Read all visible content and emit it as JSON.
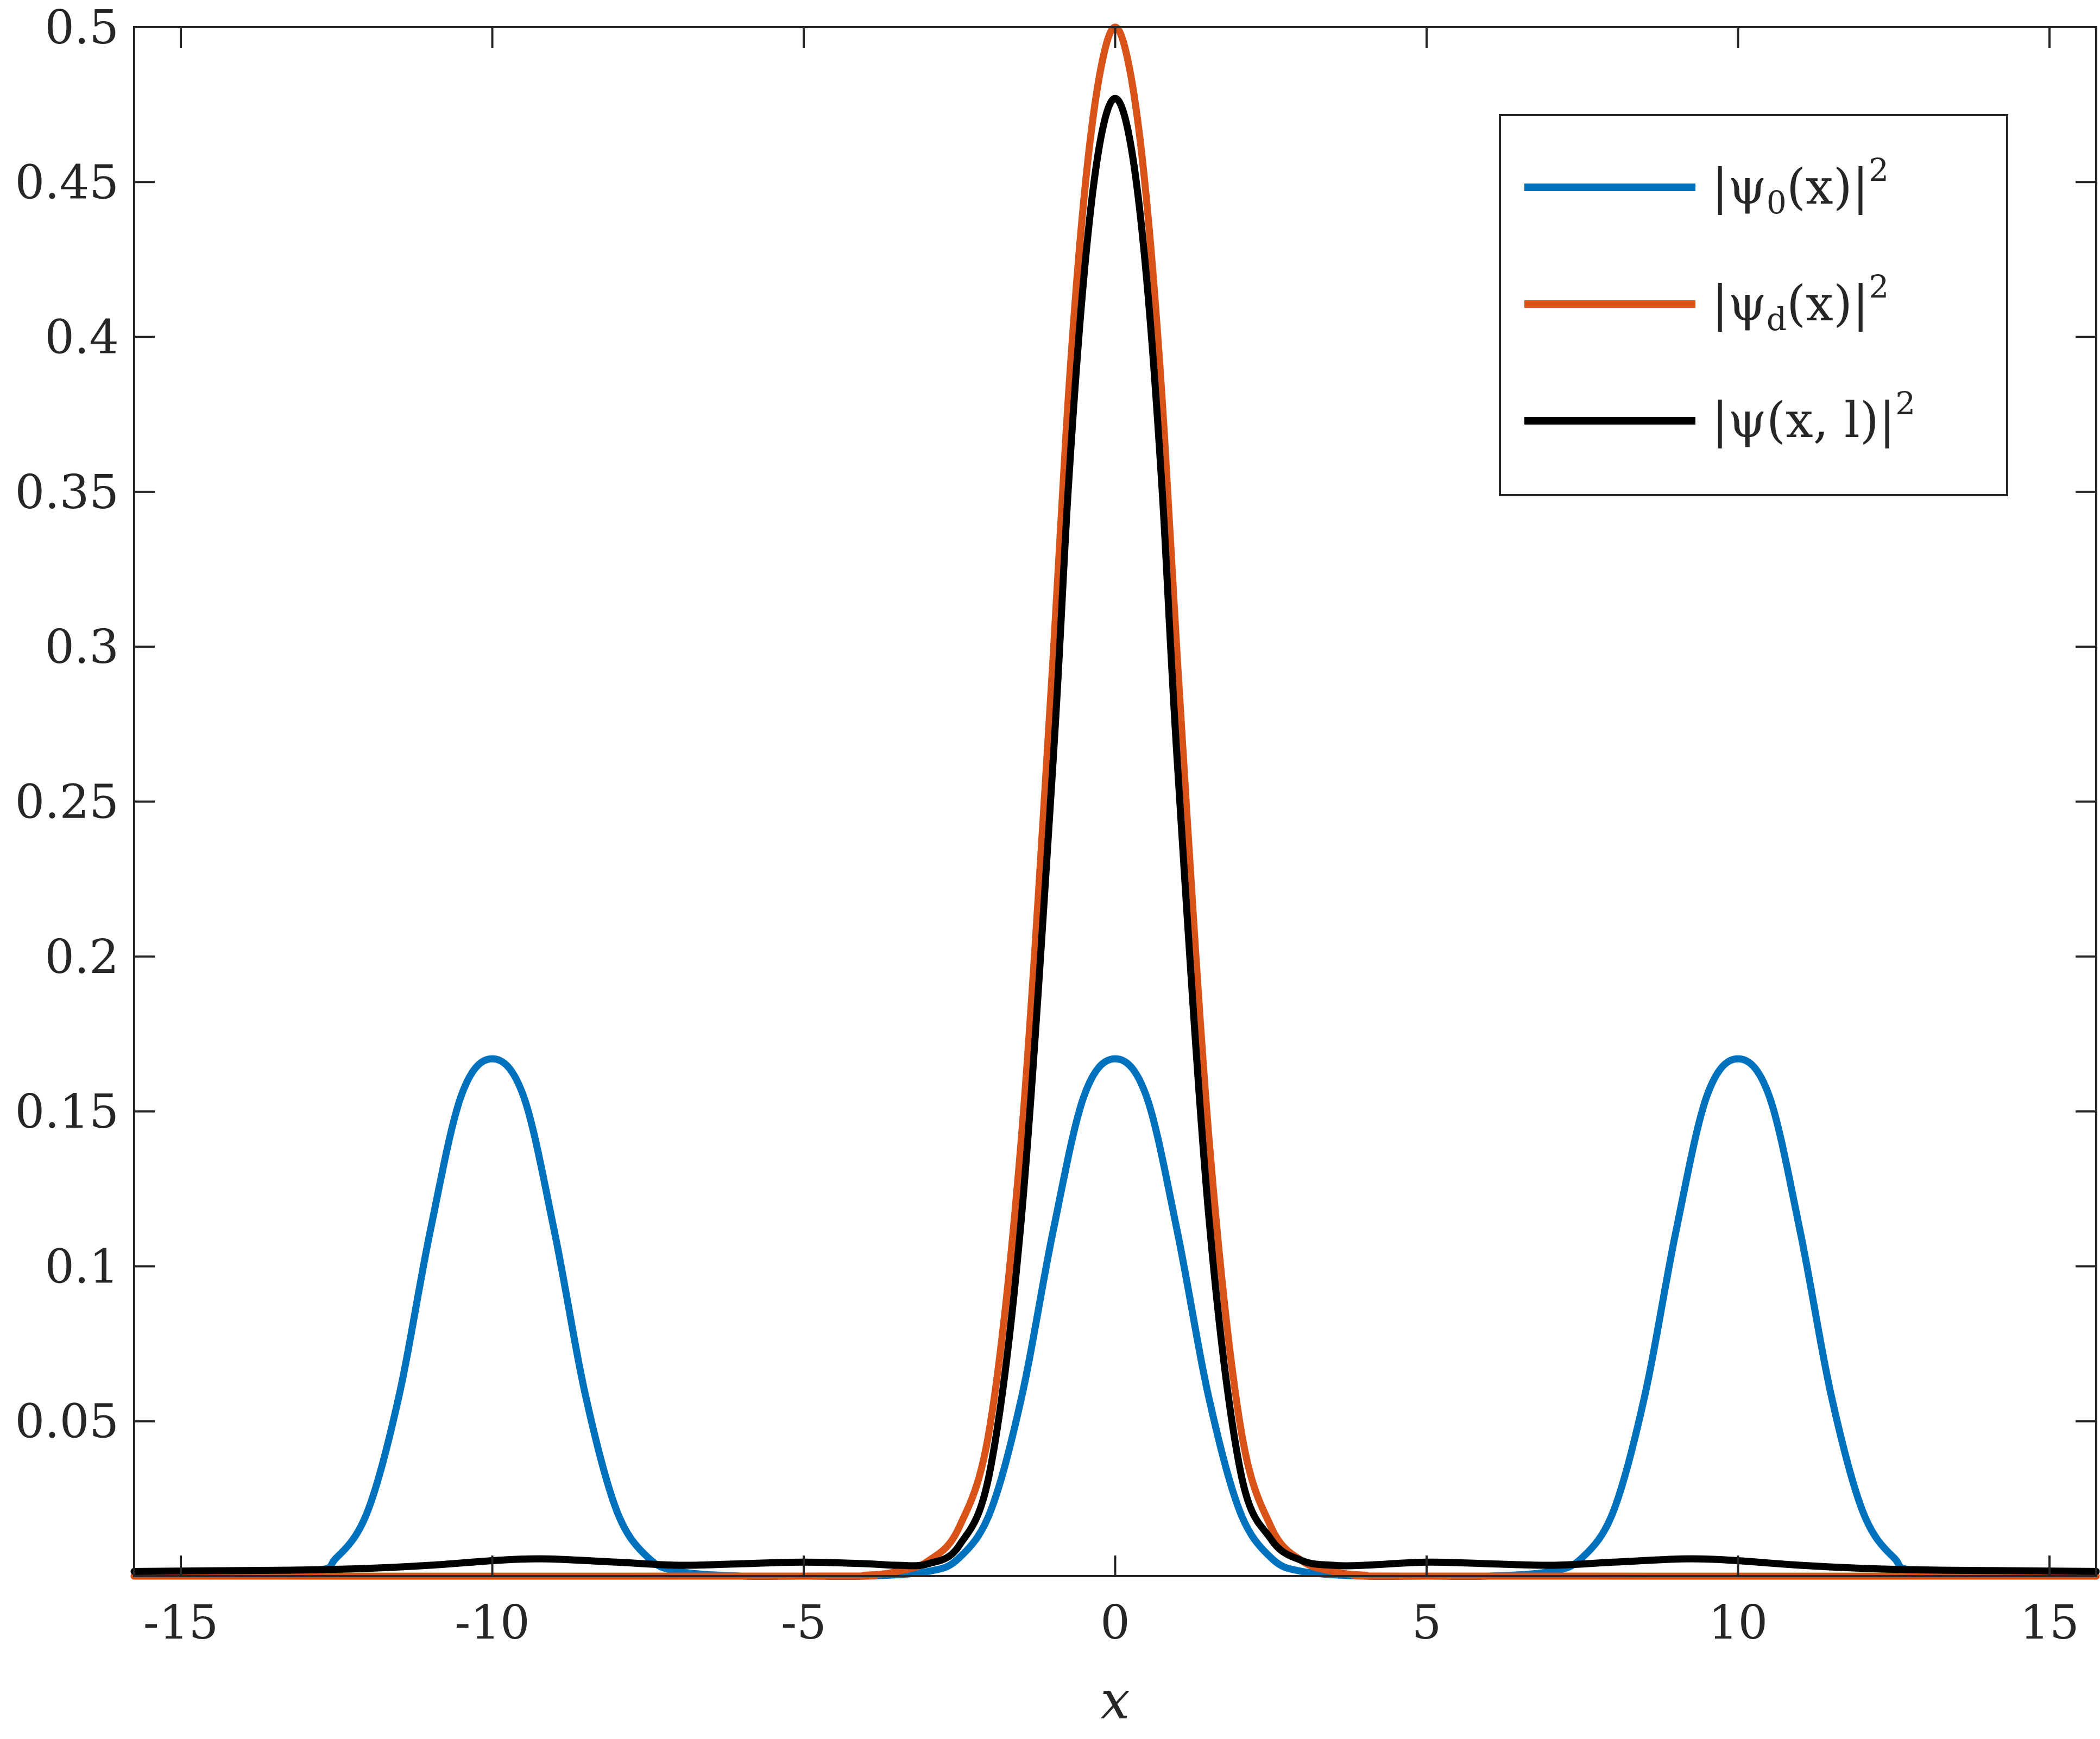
{
  "chart_data": {
    "type": "line",
    "xlabel": "x",
    "ylabel": "",
    "xlim": [
      -15.75,
      15.75
    ],
    "ylim": [
      0,
      0.5
    ],
    "xticks": [
      -15,
      -10,
      -5,
      0,
      5,
      10,
      15
    ],
    "xtick_labels": [
      "-15",
      "-10",
      "-5",
      "0",
      "5",
      "10",
      "15"
    ],
    "yticks": [
      0.05,
      0.1,
      0.15,
      0.2,
      0.25,
      0.3,
      0.35,
      0.4,
      0.45,
      0.5
    ],
    "ytick_labels": [
      "0.05",
      "0.1",
      "0.15",
      "0.2",
      "0.25",
      "0.3",
      "0.35",
      "0.4",
      "0.45",
      "0.5"
    ],
    "grid": false,
    "legend_position": "top-right",
    "series": [
      {
        "name": "|ψ0(x)|^2",
        "legend_main": "|ψ",
        "legend_sub": "0",
        "legend_tail": "(x)|",
        "legend_sup": "2",
        "color": "#0072BD",
        "x": [
          -15.75,
          -13,
          -12.5,
          -12,
          -11.5,
          -11,
          -10.5,
          -10,
          -9.5,
          -9,
          -8.5,
          -8,
          -7.5,
          -7,
          -6,
          -5,
          -4,
          -3,
          -2.5,
          -2,
          -1.5,
          -1,
          -0.5,
          0,
          0.5,
          1,
          1.5,
          2,
          2.5,
          3,
          4,
          5,
          6,
          7,
          7.5,
          8,
          8.5,
          9,
          9.5,
          10,
          10.5,
          11,
          11.5,
          12,
          12.5,
          13,
          15.75
        ],
        "y": [
          0.0,
          0.0015,
          0.006,
          0.021,
          0.058,
          0.111,
          0.155,
          0.167,
          0.155,
          0.111,
          0.058,
          0.021,
          0.006,
          0.0015,
          0.0,
          0.0,
          0.0,
          0.0015,
          0.006,
          0.021,
          0.058,
          0.111,
          0.155,
          0.167,
          0.155,
          0.111,
          0.058,
          0.021,
          0.006,
          0.0015,
          0.0,
          0.0,
          0.0,
          0.0015,
          0.006,
          0.021,
          0.058,
          0.111,
          0.155,
          0.167,
          0.155,
          0.111,
          0.058,
          0.021,
          0.006,
          0.0015,
          0.0
        ]
      },
      {
        "name": "|ψd(x)|^2",
        "legend_main": "|ψ",
        "legend_sub": "d",
        "legend_tail": "(x)|",
        "legend_sup": "2",
        "color": "#D95319",
        "x": [
          -15.75,
          -5,
          -4,
          -3.5,
          -3,
          -2.5,
          -2,
          -1.5,
          -1,
          -0.75,
          -0.5,
          -0.25,
          0,
          0.25,
          0.5,
          0.75,
          1,
          1.5,
          2,
          2.5,
          3,
          3.5,
          4,
          5,
          15.75
        ],
        "y": [
          0.0,
          0.0,
          0.0003,
          0.0015,
          0.0049,
          0.016,
          0.0497,
          0.1429,
          0.2953,
          0.3812,
          0.445,
          0.4845,
          0.5,
          0.4845,
          0.445,
          0.3812,
          0.2953,
          0.1429,
          0.0497,
          0.016,
          0.0049,
          0.0015,
          0.0003,
          0.0,
          0.0
        ]
      },
      {
        "name": "|ψ(x,l)|^2",
        "legend_main": "|ψ(x, l)|",
        "legend_sub": "",
        "legend_tail": "",
        "legend_sup": "2",
        "color": "#000000",
        "x": [
          -15.75,
          -14,
          -13,
          -12,
          -11,
          -10,
          -9.5,
          -9,
          -8,
          -7,
          -6,
          -5,
          -4,
          -3.5,
          -3,
          -2.5,
          -2,
          -1.5,
          -1,
          -0.75,
          -0.5,
          -0.25,
          0,
          0.25,
          0.5,
          0.75,
          1,
          1.5,
          2,
          2.5,
          3,
          3.5,
          4,
          5,
          6,
          7,
          8,
          9,
          9.5,
          10,
          11,
          12,
          13,
          14,
          15.75
        ],
        "y": [
          0.0015,
          0.0018,
          0.002,
          0.0025,
          0.0035,
          0.005,
          0.0055,
          0.0055,
          0.0045,
          0.0035,
          0.004,
          0.0045,
          0.004,
          0.0035,
          0.004,
          0.01,
          0.035,
          0.117,
          0.262,
          0.352,
          0.42,
          0.462,
          0.477,
          0.462,
          0.42,
          0.352,
          0.262,
          0.117,
          0.035,
          0.012,
          0.005,
          0.0035,
          0.0035,
          0.0045,
          0.004,
          0.0035,
          0.0045,
          0.0055,
          0.0055,
          0.005,
          0.0035,
          0.0025,
          0.002,
          0.0018,
          0.0015
        ]
      }
    ]
  }
}
